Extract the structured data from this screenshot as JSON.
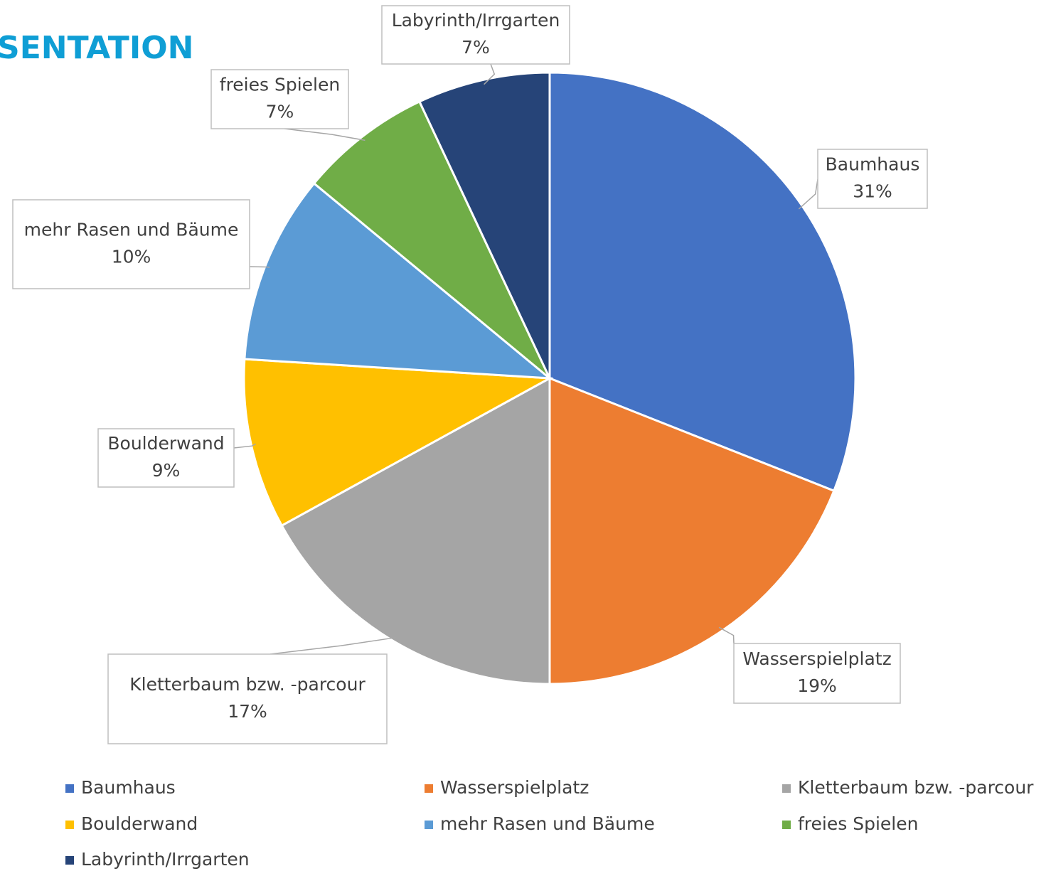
{
  "chart_data": {
    "type": "pie",
    "title": "SENTATION",
    "categories": [
      "Baumhaus",
      "Wasserspielplatz",
      "Kletterbaum bzw. -parcour",
      "Boulderwand",
      "mehr Rasen und Bäume",
      "freies Spielen",
      "Labyrinth/Irrgarten"
    ],
    "values": [
      31,
      19,
      17,
      9,
      10,
      7,
      7
    ],
    "value_labels": [
      "31%",
      "19%",
      "17%",
      "9%",
      "10%",
      "7%",
      "7%"
    ],
    "colors": [
      "#4472c4",
      "#ed7d31",
      "#a5a5a5",
      "#ffc000",
      "#5b9bd5",
      "#70ad47",
      "#264478"
    ],
    "legend": "bottom"
  }
}
